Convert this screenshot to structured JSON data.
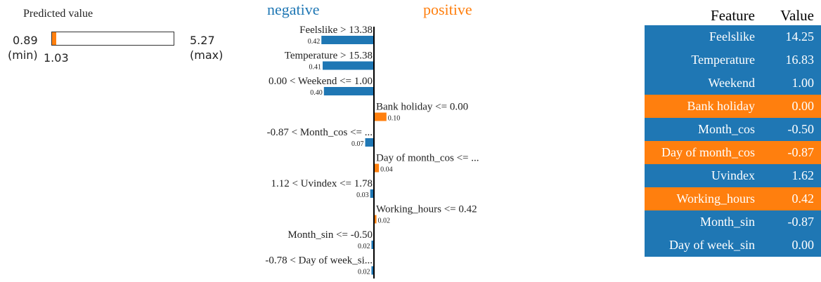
{
  "predicted": {
    "title": "Predicted value",
    "min": "0.89",
    "min_label": "(min)",
    "max": "5.27",
    "max_label": "(max)",
    "actual": "1.03",
    "min_value": 0.89,
    "max_value": 5.27,
    "actual_value": 1.03,
    "fill_color": "#ff7f0e"
  },
  "headings": {
    "negative": "negative",
    "positive": "positive",
    "negative_color": "#1f77b4",
    "positive_color": "#ff7f0e"
  },
  "chart_data": {
    "type": "bar",
    "orientation": "horizontal",
    "categories": [
      "Feelslike > 13.38",
      "Temperature > 15.38",
      "0.00 < Weekend <= 1.00",
      "Bank holiday <= 0.00",
      "-0.87 < Month_cos <= ...",
      "Day of month_cos <= ...",
      "1.12 < Uvindex <= 1.78",
      "Working_hours <= 0.42",
      "Month_sin <= -0.50",
      "-0.78 < Day of week_si..."
    ],
    "values": [
      -0.42,
      -0.41,
      -0.4,
      0.1,
      -0.07,
      0.04,
      -0.03,
      0.02,
      -0.02,
      -0.02
    ],
    "value_labels": [
      "0.42",
      "0.41",
      "0.40",
      "0.10",
      "0.07",
      "0.04",
      "0.03",
      "0.02",
      "0.02",
      "0.02"
    ],
    "colors": {
      "negative": "#1f77b4",
      "positive": "#ff7f0e"
    }
  },
  "table": {
    "headers": {
      "feature": "Feature",
      "value": "Value"
    },
    "rows": [
      {
        "feature": "Feelslike",
        "value": "14.25",
        "color": "#1f77b4"
      },
      {
        "feature": "Temperature",
        "value": "16.83",
        "color": "#1f77b4"
      },
      {
        "feature": "Weekend",
        "value": "1.00",
        "color": "#1f77b4"
      },
      {
        "feature": "Bank holiday",
        "value": "0.00",
        "color": "#ff7f0e"
      },
      {
        "feature": "Month_cos",
        "value": "-0.50",
        "color": "#1f77b4"
      },
      {
        "feature": "Day of month_cos",
        "value": "-0.87",
        "color": "#ff7f0e"
      },
      {
        "feature": "Uvindex",
        "value": "1.62",
        "color": "#1f77b4"
      },
      {
        "feature": "Working_hours",
        "value": "0.42",
        "color": "#ff7f0e"
      },
      {
        "feature": "Month_sin",
        "value": "-0.87",
        "color": "#1f77b4"
      },
      {
        "feature": "Day of week_sin",
        "value": "0.00",
        "color": "#1f77b4"
      }
    ]
  }
}
